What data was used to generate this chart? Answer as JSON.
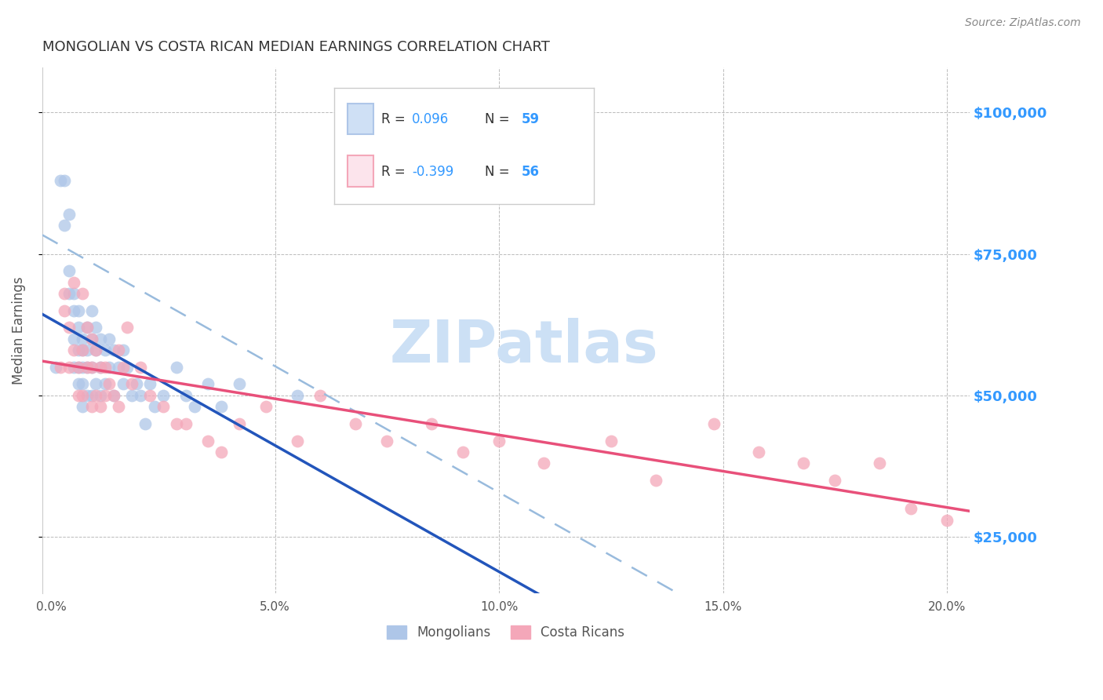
{
  "title": "MONGOLIAN VS COSTA RICAN MEDIAN EARNINGS CORRELATION CHART",
  "source": "Source: ZipAtlas.com",
  "ylabel": "Median Earnings",
  "xlabel_ticks": [
    "0.0%",
    "5.0%",
    "10.0%",
    "15.0%",
    "20.0%"
  ],
  "xlabel_vals": [
    0.0,
    0.05,
    0.1,
    0.15,
    0.2
  ],
  "ytick_labels": [
    "$25,000",
    "$50,000",
    "$75,000",
    "$100,000"
  ],
  "ytick_vals": [
    25000,
    50000,
    75000,
    100000
  ],
  "ylim": [
    15000,
    108000
  ],
  "xlim": [
    -0.002,
    0.205
  ],
  "legend_entries": [
    {
      "label": "Mongolians",
      "color": "#aec6e8"
    },
    {
      "label": "Costa Ricans",
      "color": "#f4a7b9"
    }
  ],
  "watermark": "ZIPatlas",
  "watermark_color": "#cce0f5",
  "background_color": "#ffffff",
  "grid_color": "#bbbbbb",
  "title_color": "#333333",
  "axis_label_color": "#555555",
  "ytick_color": "#3399ff",
  "source_color": "#888888",
  "blue_line_color": "#2255bb",
  "blue_dashed_color": "#99bbdd",
  "pink_line_color": "#e8507a",
  "mongolian_dot_color": "#aec6e8",
  "costarican_dot_color": "#f4a7b9",
  "mongolian_x": [
    0.001,
    0.002,
    0.003,
    0.003,
    0.004,
    0.004,
    0.004,
    0.005,
    0.005,
    0.005,
    0.005,
    0.006,
    0.006,
    0.006,
    0.006,
    0.006,
    0.007,
    0.007,
    0.007,
    0.007,
    0.007,
    0.008,
    0.008,
    0.008,
    0.008,
    0.009,
    0.009,
    0.009,
    0.009,
    0.01,
    0.01,
    0.01,
    0.011,
    0.011,
    0.011,
    0.012,
    0.012,
    0.013,
    0.013,
    0.014,
    0.014,
    0.015,
    0.016,
    0.016,
    0.017,
    0.018,
    0.019,
    0.02,
    0.021,
    0.022,
    0.023,
    0.025,
    0.028,
    0.03,
    0.032,
    0.035,
    0.038,
    0.042,
    0.055
  ],
  "mongolian_y": [
    55000,
    88000,
    88000,
    80000,
    72000,
    68000,
    82000,
    68000,
    65000,
    60000,
    55000,
    65000,
    62000,
    58000,
    55000,
    52000,
    60000,
    58000,
    55000,
    52000,
    48000,
    62000,
    58000,
    55000,
    50000,
    65000,
    60000,
    55000,
    50000,
    62000,
    58000,
    52000,
    60000,
    55000,
    50000,
    58000,
    52000,
    60000,
    55000,
    58000,
    50000,
    55000,
    58000,
    52000,
    55000,
    50000,
    52000,
    50000,
    45000,
    52000,
    48000,
    50000,
    55000,
    50000,
    48000,
    52000,
    48000,
    52000,
    50000
  ],
  "costarican_x": [
    0.002,
    0.003,
    0.003,
    0.004,
    0.004,
    0.005,
    0.005,
    0.006,
    0.006,
    0.007,
    0.007,
    0.007,
    0.008,
    0.008,
    0.009,
    0.009,
    0.009,
    0.01,
    0.01,
    0.011,
    0.011,
    0.012,
    0.012,
    0.013,
    0.014,
    0.015,
    0.015,
    0.016,
    0.017,
    0.018,
    0.02,
    0.022,
    0.025,
    0.028,
    0.03,
    0.035,
    0.038,
    0.042,
    0.048,
    0.055,
    0.06,
    0.068,
    0.075,
    0.085,
    0.092,
    0.1,
    0.11,
    0.125,
    0.135,
    0.148,
    0.158,
    0.168,
    0.175,
    0.185,
    0.192,
    0.2
  ],
  "costarican_y": [
    55000,
    68000,
    65000,
    62000,
    55000,
    70000,
    58000,
    55000,
    50000,
    68000,
    58000,
    50000,
    62000,
    55000,
    60000,
    55000,
    48000,
    58000,
    50000,
    55000,
    48000,
    55000,
    50000,
    52000,
    50000,
    58000,
    48000,
    55000,
    62000,
    52000,
    55000,
    50000,
    48000,
    45000,
    45000,
    42000,
    40000,
    45000,
    48000,
    42000,
    50000,
    45000,
    42000,
    45000,
    40000,
    42000,
    38000,
    42000,
    35000,
    45000,
    40000,
    38000,
    35000,
    38000,
    30000,
    28000
  ]
}
